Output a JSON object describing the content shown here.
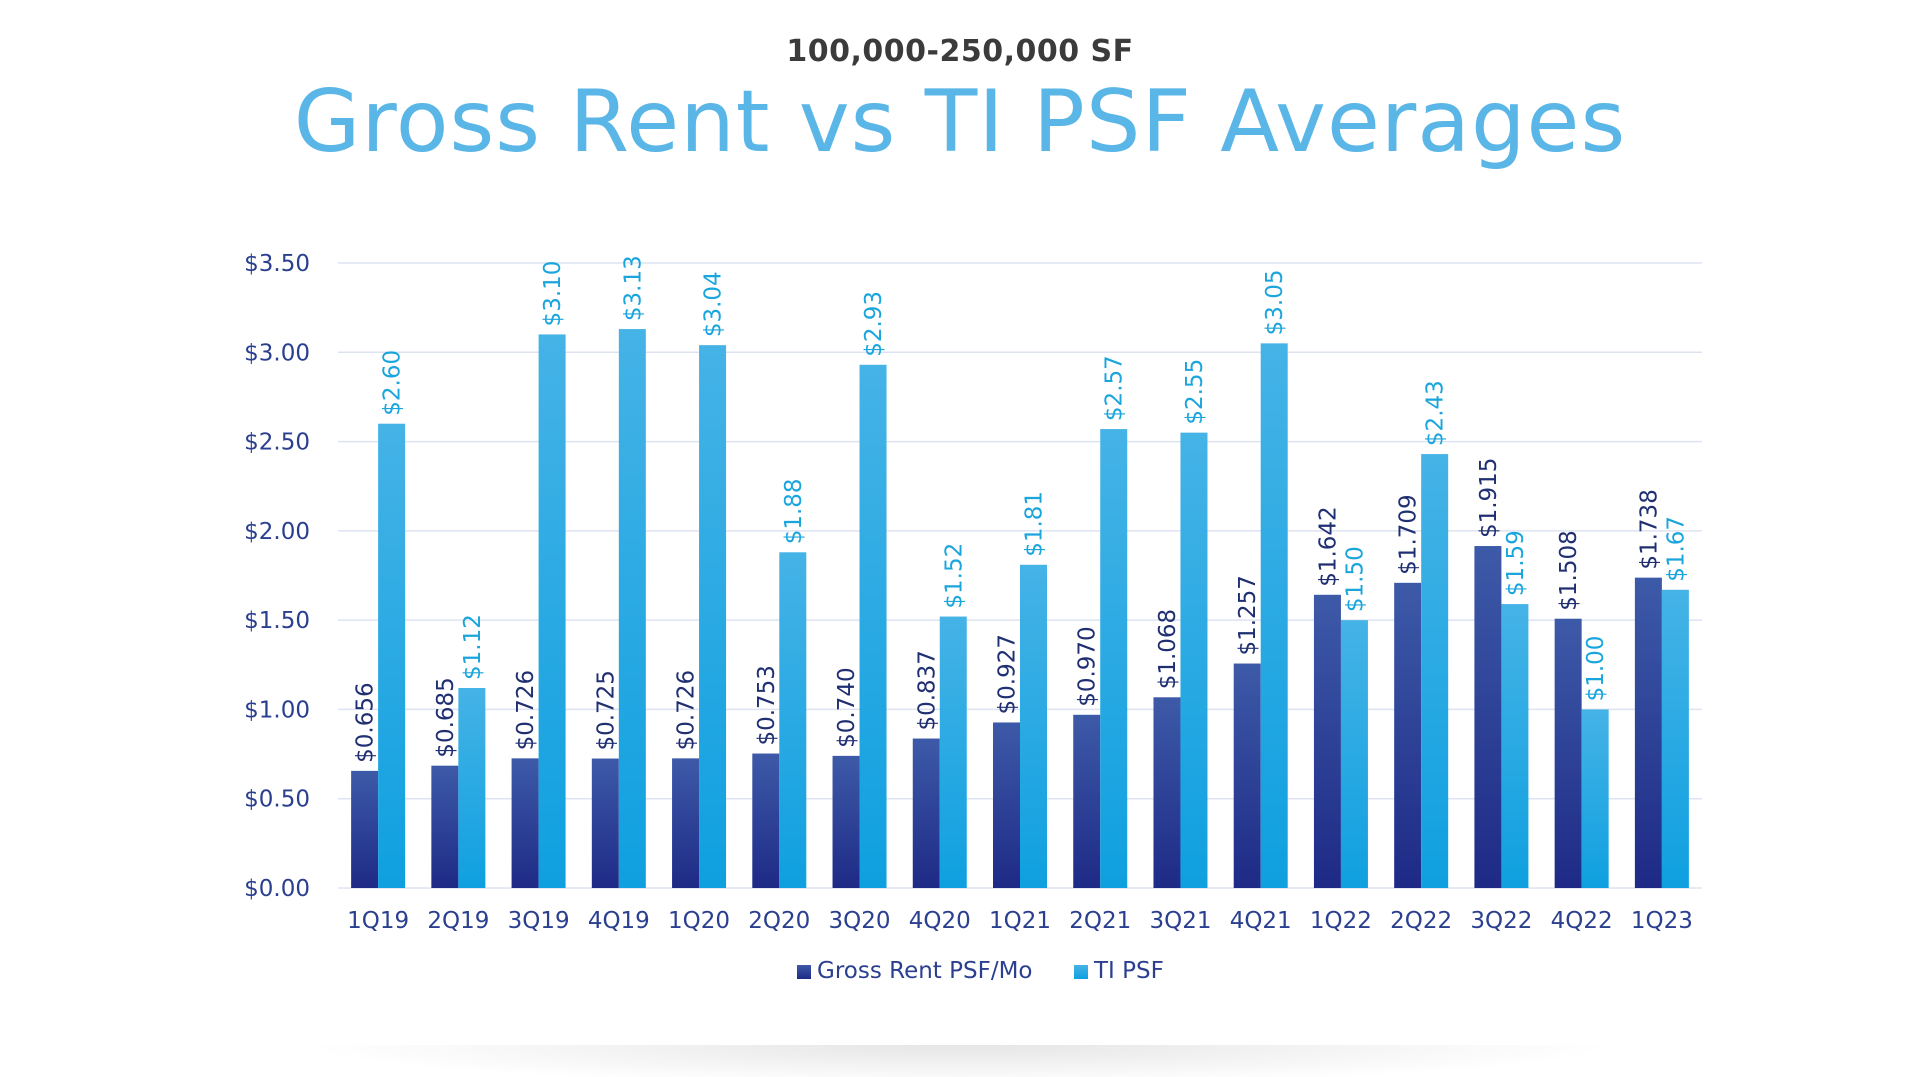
{
  "header": {
    "subtitle": "100,000-250,000 SF",
    "title": "Gross Rent vs TI PSF Averages"
  },
  "colors": {
    "rent": "#24318c",
    "ti": "#1fa6e0",
    "grid": "#dde3f0",
    "title": "#5ab6e6"
  },
  "chart_data": {
    "type": "bar",
    "title": "Gross Rent vs TI PSF Averages",
    "subtitle": "100,000-250,000 SF",
    "categories": [
      "1Q19",
      "2Q19",
      "3Q19",
      "4Q19",
      "1Q20",
      "2Q20",
      "3Q20",
      "4Q20",
      "1Q21",
      "2Q21",
      "3Q21",
      "4Q21",
      "1Q22",
      "2Q22",
      "3Q22",
      "4Q22",
      "1Q23"
    ],
    "series": [
      {
        "name": "Gross Rent PSF/Mo",
        "values": [
          0.656,
          0.685,
          0.726,
          0.725,
          0.726,
          0.753,
          0.74,
          0.837,
          0.927,
          0.97,
          1.068,
          1.257,
          1.642,
          1.709,
          1.915,
          1.508,
          1.738
        ],
        "labels": [
          "$0.656",
          "$0.685",
          "$0.726",
          "$0.725",
          "$0.726",
          "$0.753",
          "$0.740",
          "$0.837",
          "$0.927",
          "$0.970",
          "$1.068",
          "$1.257",
          "$1.642",
          "$1.709",
          "$1.915",
          "$1.508",
          "$1.738"
        ]
      },
      {
        "name": "TI PSF",
        "values": [
          2.6,
          1.12,
          3.1,
          3.13,
          3.04,
          1.88,
          2.93,
          1.52,
          1.81,
          2.57,
          2.55,
          3.05,
          1.5,
          2.43,
          1.59,
          1.0,
          1.67
        ],
        "labels": [
          "$2.60",
          "$1.12",
          "$3.10",
          "$3.13",
          "$3.04",
          "$1.88",
          "$2.93",
          "$1.52",
          "$1.81",
          "$2.57",
          "$2.55",
          "$3.05",
          "$1.50",
          "$2.43",
          "$1.59",
          "$1.00",
          "$1.67"
        ]
      }
    ],
    "y_ticks": [
      "$0.00",
      "$0.50",
      "$1.00",
      "$1.50",
      "$2.00",
      "$2.50",
      "$3.00",
      "$3.50"
    ],
    "ylim": [
      0,
      3.5
    ],
    "grid": true,
    "legend_position": "bottom-center"
  }
}
